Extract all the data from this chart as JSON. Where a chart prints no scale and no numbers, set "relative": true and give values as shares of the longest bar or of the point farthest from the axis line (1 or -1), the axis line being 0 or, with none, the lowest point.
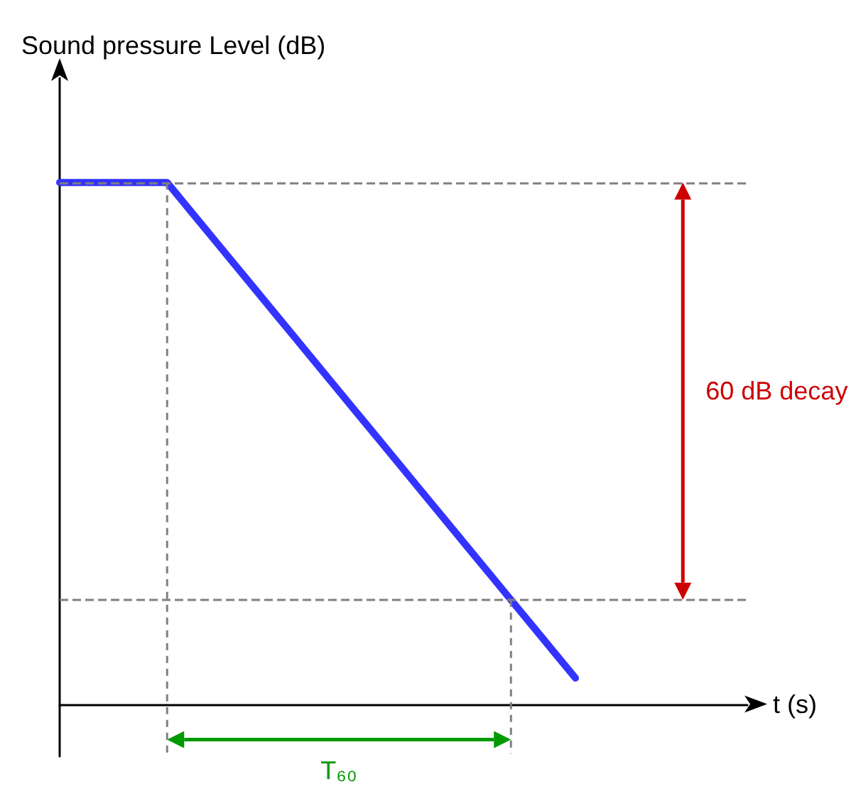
{
  "chart_data": {
    "type": "line",
    "relative": true,
    "xlabel": "t (s)",
    "ylabel": "Sound pressure Level (dB)",
    "categories": [
      null,
      null,
      null,
      null,
      null,
      null,
      null,
      null,
      null,
      null,
      null,
      null,
      null,
      null,
      null,
      null,
      null,
      null,
      null,
      null,
      null,
      null,
      null,
      null,
      null,
      null,
      null,
      null,
      null,
      null,
      null,
      null,
      null
    ],
    "series": [
      {
        "color": "#3333ff",
        "values": [
          1,
          1,
          1,
          1,
          1,
          1,
          0.95,
          0.9,
          0.85,
          0.8,
          0.75,
          0.7,
          0.65,
          0.6,
          0.55,
          0.5,
          0.45,
          0.4,
          0.35,
          0.3,
          0.25,
          0.2,
          0.15,
          0.1,
          0.05,
          null,
          null,
          null,
          null,
          null,
          null,
          null,
          null
        ]
      }
    ],
    "ref_lines": [
      {
        "axis": "y",
        "value": 1,
        "color": "#808080",
        "line_style": "dashed"
      },
      {
        "axis": "y",
        "value": 0.2,
        "color": "#808080",
        "line_style": "dashed"
      }
    ],
    "annotations": [
      "60 dB decay",
      "T₆₀"
    ],
    "marker": "none",
    "line_style": "solid",
    "grid": false
  }
}
